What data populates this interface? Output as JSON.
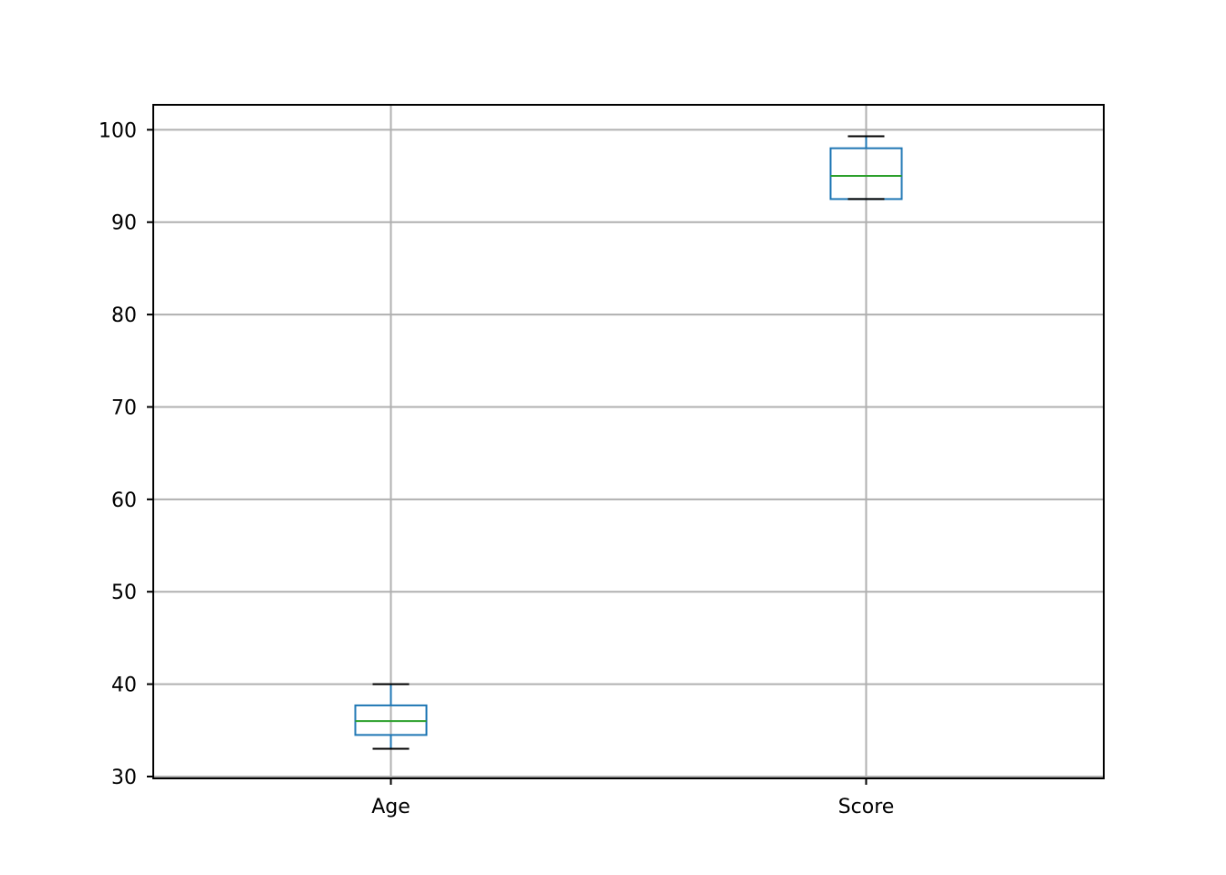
{
  "chart_data": {
    "type": "box",
    "categories": [
      "Age",
      "Score"
    ],
    "boxes": [
      {
        "name": "Age",
        "whisker_low": 33,
        "q1": 34.5,
        "median": 36,
        "q3": 37.7,
        "whisker_high": 40
      },
      {
        "name": "Score",
        "whisker_low": 92.5,
        "q1": 92.5,
        "median": 95,
        "q3": 98,
        "whisker_high": 99.3
      }
    ],
    "ylim": [
      29.8,
      102.7
    ],
    "yticks": [
      30,
      40,
      50,
      60,
      70,
      80,
      90,
      100
    ],
    "grid": true,
    "title": "",
    "xlabel": "",
    "ylabel": "",
    "colors": {
      "box": "#1f77b4",
      "median": "#2ca02c",
      "cap": "#000000",
      "grid": "#b0b0b0",
      "axes": "#000000"
    }
  }
}
